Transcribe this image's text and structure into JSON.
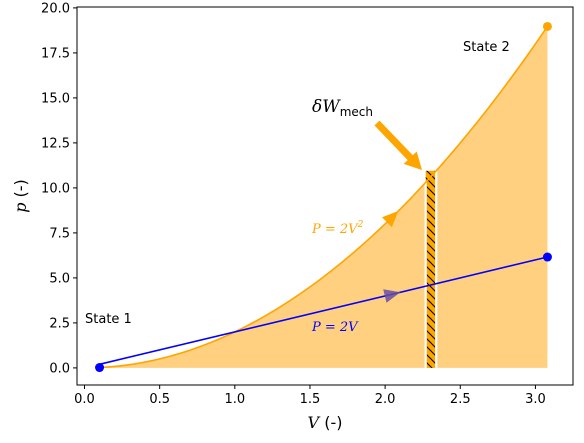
{
  "chart_data": {
    "type": "line",
    "xlabel": "V (-)",
    "ylabel": "p (-)",
    "xlim": [
      -0.05,
      3.25
    ],
    "ylim": [
      -0.95,
      20.05
    ],
    "x_ticks": [
      "0.0",
      "0.5",
      "1.0",
      "1.5",
      "2.0",
      "2.5",
      "3.0"
    ],
    "y_ticks": [
      "0.0",
      "2.5",
      "5.0",
      "7.5",
      "10.0",
      "12.5",
      "15.0",
      "17.5",
      "20.0"
    ],
    "grid": false,
    "colors": {
      "orange": "#ffa500",
      "fill": "#ffd080",
      "blue": "#0000ff",
      "arrow_purple": "#6a4ea0"
    },
    "series": [
      {
        "label": "P = 2V²",
        "formula": "p = 2V^2",
        "x_range": [
          0.1,
          3.08
        ],
        "color": "#ffa500",
        "filled": true
      },
      {
        "label": "P = 2V",
        "formula": "p = 2V",
        "x_range": [
          0.1,
          3.08
        ],
        "color": "#0000ff",
        "filled": false
      }
    ],
    "points": [
      {
        "x": 0.1,
        "y": 0.02,
        "color": "#0000ff"
      },
      {
        "x": 3.08,
        "y": 6.16,
        "color": "#0000ff"
      },
      {
        "x": 3.08,
        "y": 18.97,
        "color": "#ffa500"
      }
    ],
    "hatched_strip": {
      "x_range": [
        2.27,
        2.34
      ]
    },
    "annotations": {
      "state1": "State 1",
      "state2": "State 2",
      "dw_main": "δW",
      "dw_sub": "mech",
      "p2v2_main": "P = 2V",
      "p2v2_exp": "2",
      "p2v": "P = 2V"
    }
  }
}
